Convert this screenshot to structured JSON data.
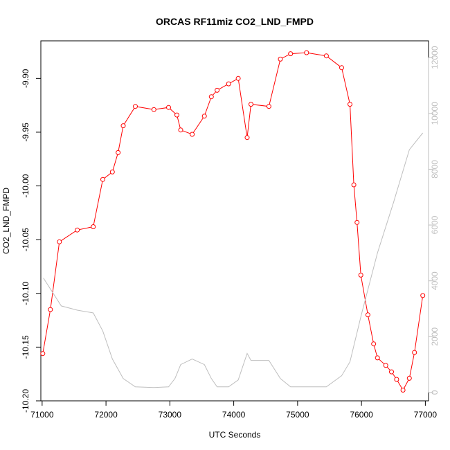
{
  "chart_data": {
    "type": "line",
    "title": "ORCAS RF11miz CO2_LND_FMPD",
    "xlabel": "UTC Seconds",
    "ylabel": "CO2_LND_FMPD",
    "xlim": [
      70980,
      77050
    ],
    "ylim": [
      -10.2,
      -9.865
    ],
    "y2lim": [
      -300,
      12600
    ],
    "x_ticks": [
      71000,
      72000,
      73000,
      74000,
      75000,
      76000,
      77000
    ],
    "y_ticks": [
      -10.2,
      -10.15,
      -10.1,
      -10.05,
      -10.0,
      -9.95,
      -9.9
    ],
    "y_tick_labels": [
      "-10.20",
      "-10.15",
      "-10.10",
      "-10.05",
      "-10.00",
      "-9.95",
      "-9.90"
    ],
    "y2_ticks": [
      0,
      2000,
      4000,
      6000,
      8000,
      10000,
      12000
    ],
    "colors": {
      "primary": "#ff0000",
      "secondary": "#bebebe",
      "axis": "#000000"
    },
    "series": [
      {
        "axis": "left",
        "style": "line+points",
        "x": [
          71010,
          71130,
          71270,
          71550,
          71800,
          71950,
          72100,
          72190,
          72270,
          72460,
          72750,
          72980,
          73110,
          73170,
          73350,
          73540,
          73650,
          73740,
          73920,
          74070,
          74210,
          74270,
          74550,
          74730,
          74890,
          75140,
          75450,
          75690,
          75820,
          75880,
          75930,
          75990,
          76100,
          76190,
          76250,
          76380,
          76470,
          76550,
          76650,
          76750,
          76830,
          76960
        ],
        "y": [
          -10.156,
          -10.115,
          -10.052,
          -10.041,
          -10.038,
          -9.994,
          -9.987,
          -9.969,
          -9.944,
          -9.926,
          -9.929,
          -9.927,
          -9.934,
          -9.948,
          -9.952,
          -9.935,
          -9.917,
          -9.911,
          -9.905,
          -9.9,
          -9.955,
          -9.924,
          -9.926,
          -9.882,
          -9.877,
          -9.876,
          -9.879,
          -9.89,
          -9.924,
          -9.999,
          -10.034,
          -10.083,
          -10.12,
          -10.147,
          -10.16,
          -10.167,
          -10.173,
          -10.18,
          -10.19,
          -10.179,
          -10.155,
          -10.102
        ]
      },
      {
        "axis": "right",
        "style": "line",
        "x": [
          71020,
          71300,
          71550,
          71800,
          71950,
          72100,
          72270,
          72460,
          72750,
          72980,
          73080,
          73170,
          73350,
          73540,
          73650,
          73740,
          73920,
          74070,
          74210,
          74270,
          74550,
          74730,
          74890,
          75140,
          75450,
          75690,
          75820,
          76000,
          76250,
          76500,
          76750,
          76960
        ],
        "y": [
          4100,
          3100,
          2950,
          2850,
          2200,
          1200,
          500,
          200,
          180,
          200,
          500,
          1000,
          1200,
          1000,
          500,
          200,
          200,
          450,
          1400,
          1150,
          1150,
          500,
          200,
          200,
          200,
          600,
          1100,
          2800,
          5000,
          6800,
          8700,
          9300
        ]
      }
    ]
  }
}
